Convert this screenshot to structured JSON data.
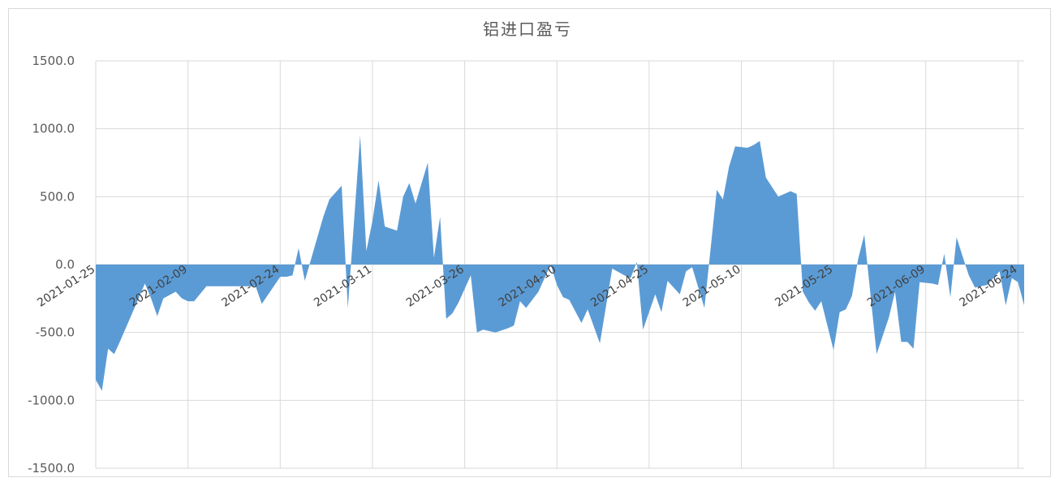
{
  "chart_data": {
    "type": "area",
    "title": "铝进口盈亏",
    "xlabel": "",
    "ylabel": "",
    "ylim": [
      -1500,
      1500
    ],
    "y_ticks": [
      "1500.0",
      "1000.0",
      "500.0",
      "0.0",
      "-500.0",
      "-1000.0",
      "-1500.0"
    ],
    "x_tick_labels": [
      "2021-01-25",
      "2021-02-09",
      "2021-02-24",
      "2021-03-11",
      "2021-03-26",
      "2021-04-10",
      "2021-04-25",
      "2021-05-10",
      "2021-05-25",
      "2021-06-09",
      "2021-06-24"
    ],
    "grid": true,
    "fill_color": "#5b9bd5",
    "grid_color": "#d9d9d9",
    "series": [
      {
        "x": [
          "2021-01-25",
          "2021-01-26",
          "2021-01-27",
          "2021-01-28",
          "2021-01-29",
          "2021-01-31",
          "2021-02-02",
          "2021-02-03",
          "2021-02-04",
          "2021-02-05",
          "2021-02-07",
          "2021-02-08",
          "2021-02-09",
          "2021-02-10",
          "2021-02-12",
          "2021-02-15",
          "2021-02-19",
          "2021-02-20",
          "2021-02-21",
          "2021-02-24",
          "2021-02-25",
          "2021-02-26",
          "2021-02-27",
          "2021-02-28",
          "2021-03-03",
          "2021-03-04",
          "2021-03-06",
          "2021-03-07",
          "2021-03-09",
          "2021-03-10",
          "2021-03-11",
          "2021-03-12",
          "2021-03-13",
          "2021-03-15",
          "2021-03-16",
          "2021-03-17",
          "2021-03-18",
          "2021-03-20",
          "2021-03-21",
          "2021-03-22",
          "2021-03-23",
          "2021-03-24",
          "2021-03-25",
          "2021-03-27",
          "2021-03-28",
          "2021-03-29",
          "2021-03-30",
          "2021-03-31",
          "2021-04-02",
          "2021-04-03",
          "2021-04-04",
          "2021-04-05",
          "2021-04-07",
          "2021-04-09",
          "2021-04-10",
          "2021-04-11",
          "2021-04-12",
          "2021-04-14",
          "2021-04-15",
          "2021-04-17",
          "2021-04-19",
          "2021-04-21",
          "2021-04-22",
          "2021-04-23",
          "2021-04-24",
          "2021-04-26",
          "2021-04-27",
          "2021-04-28",
          "2021-04-30",
          "2021-05-01",
          "2021-05-02",
          "2021-05-04",
          "2021-05-06",
          "2021-05-07",
          "2021-05-08",
          "2021-05-09",
          "2021-05-11",
          "2021-05-12",
          "2021-05-13",
          "2021-05-14",
          "2021-05-16",
          "2021-05-18",
          "2021-05-19",
          "2021-05-20",
          "2021-05-21",
          "2021-05-22",
          "2021-05-23",
          "2021-05-25",
          "2021-05-26",
          "2021-05-27",
          "2021-05-28",
          "2021-05-29",
          "2021-05-30",
          "2021-06-01",
          "2021-06-03",
          "2021-06-04",
          "2021-06-05",
          "2021-06-06",
          "2021-06-07",
          "2021-06-08",
          "2021-06-10",
          "2021-06-11",
          "2021-06-12",
          "2021-06-13",
          "2021-06-14",
          "2021-06-15",
          "2021-06-16",
          "2021-06-17",
          "2021-06-19",
          "2021-06-21",
          "2021-06-22",
          "2021-06-23",
          "2021-06-24",
          "2021-06-25"
        ],
        "values": [
          -850,
          -930,
          -620,
          -660,
          -560,
          -350,
          -140,
          -250,
          -380,
          -250,
          -200,
          -250,
          -270,
          -270,
          -160,
          -160,
          -160,
          -160,
          -290,
          -90,
          -90,
          -80,
          120,
          -120,
          350,
          480,
          580,
          -320,
          950,
          100,
          320,
          620,
          280,
          250,
          500,
          600,
          450,
          750,
          50,
          350,
          -400,
          -360,
          -280,
          -80,
          -500,
          -480,
          -490,
          -500,
          -470,
          -450,
          -270,
          -320,
          -200,
          0,
          -150,
          -240,
          -260,
          -430,
          -330,
          -580,
          -30,
          -80,
          -100,
          20,
          -480,
          -220,
          -350,
          -120,
          -220,
          -50,
          -20,
          -320,
          550,
          480,
          720,
          870,
          860,
          880,
          910,
          640,
          500,
          540,
          520,
          -200,
          -280,
          -340,
          -270,
          -630,
          -350,
          -330,
          -230,
          40,
          220,
          -660,
          -390,
          -200,
          -570,
          -570,
          -620,
          -130,
          -140,
          -150,
          80,
          -240,
          200,
          60,
          -80,
          -170,
          -150,
          -50,
          -300,
          -100,
          -130,
          -300
        ]
      }
    ]
  }
}
